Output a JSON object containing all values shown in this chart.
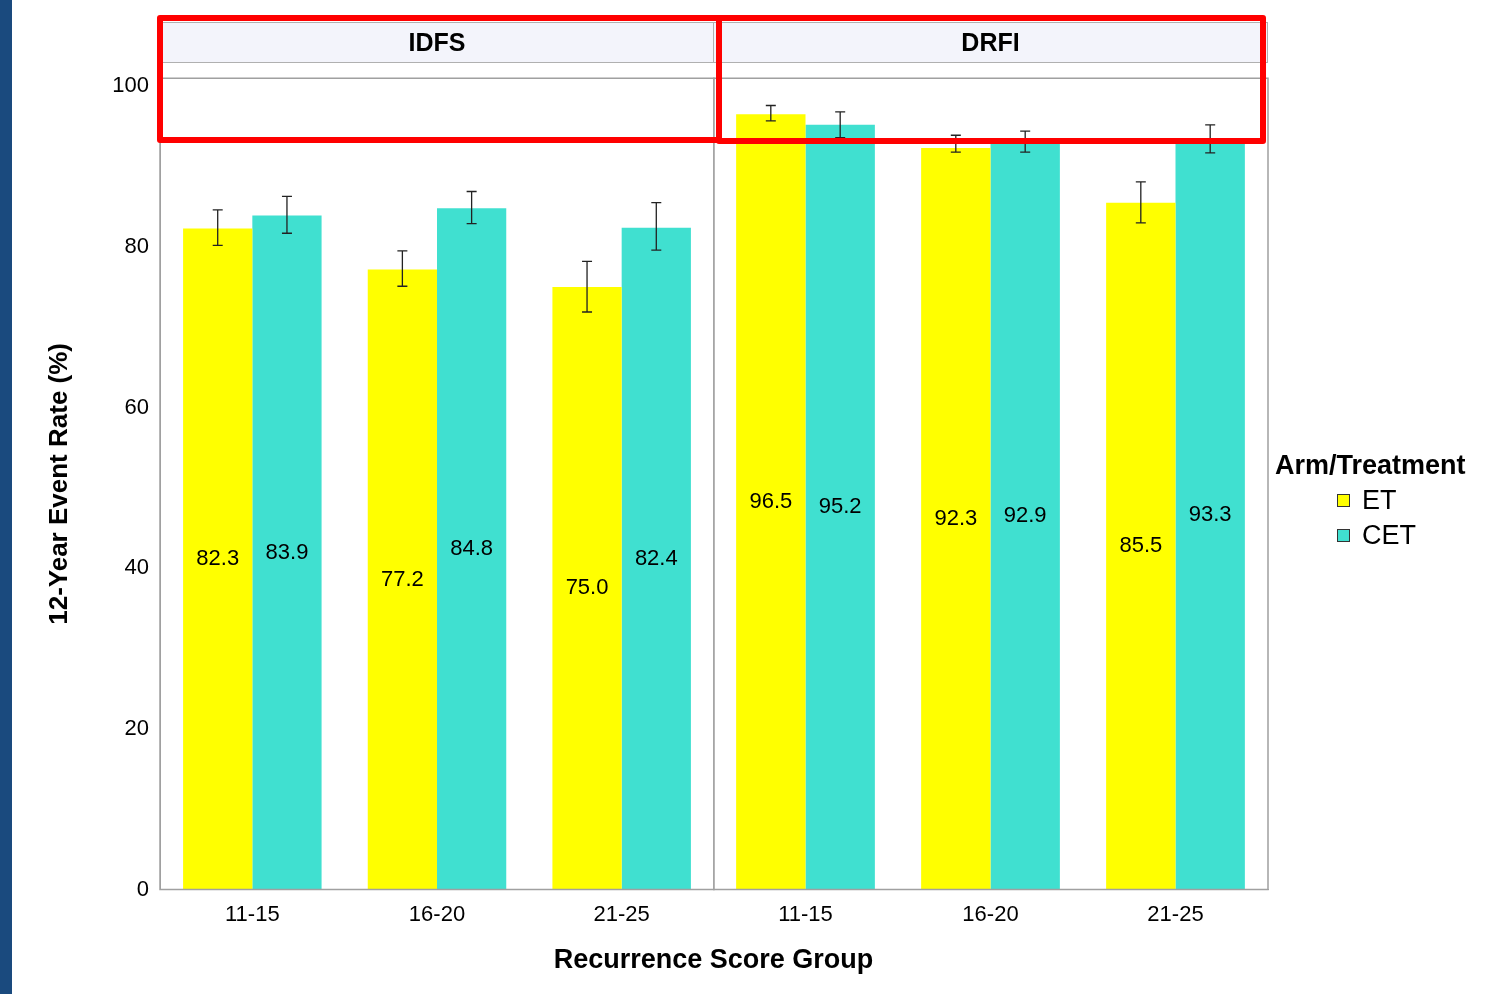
{
  "chart_data": [
    {
      "type": "bar",
      "title": "IDFS",
      "xlabel": "Recurrence Score Group",
      "ylabel": "12-Year Event Rate (%)",
      "categories": [
        "11-15",
        "16-20",
        "21-25"
      ],
      "series": [
        {
          "color": "#ffff00",
          "values": [
            82.3,
            77.2,
            75.0
          ],
          "value_labels": [
            "82.3",
            "77.2",
            "75.0"
          ],
          "errors": [
            [
              80.2,
              84.6
            ],
            [
              75.1,
              79.5
            ],
            [
              71.9,
              78.2
            ]
          ]
        },
        {
          "color": "#40e0d0",
          "values": [
            83.9,
            84.8,
            82.4
          ],
          "value_labels": [
            "83.9",
            "84.8",
            "82.4"
          ],
          "errors": [
            [
              81.7,
              86.3
            ],
            [
              82.9,
              86.9
            ],
            [
              79.6,
              85.5
            ]
          ]
        }
      ],
      "ylim": [
        0,
        101
      ],
      "yticks": [
        0,
        20,
        40,
        60,
        80,
        100
      ],
      "grid": false,
      "legend": false
    },
    {
      "type": "bar",
      "title": "DRFI",
      "categories": [
        "11-15",
        "16-20",
        "21-25"
      ],
      "series": [
        {
          "name": "ET",
          "color": "#ffff00",
          "values": [
            96.5,
            92.3,
            85.5
          ],
          "value_labels": [
            "96.5",
            "92.3",
            "85.5"
          ],
          "errors": [
            [
              95.7,
              97.6
            ],
            [
              91.8,
              93.9
            ],
            [
              83.0,
              88.1
            ]
          ]
        },
        {
          "name": "CET",
          "color": "#40e0d0",
          "values": [
            95.2,
            92.9,
            93.3
          ],
          "value_labels": [
            "95.2",
            "92.9",
            "93.3"
          ],
          "errors": [
            [
              93.6,
              96.8
            ],
            [
              91.8,
              94.4
            ],
            [
              91.7,
              95.2
            ]
          ]
        }
      ],
      "ylim": [
        0,
        101
      ],
      "yticks": [
        0,
        20,
        40,
        60,
        80,
        100
      ],
      "grid": false,
      "legend": "right",
      "legend_title": "Arm/Treatment",
      "tick_labels": "x"
    }
  ]
}
